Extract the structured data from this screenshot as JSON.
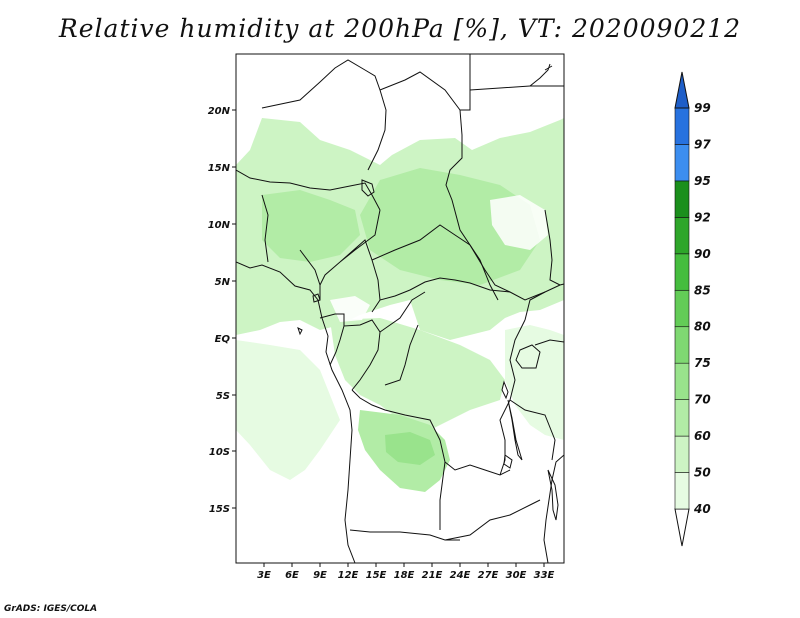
{
  "title": "Relative humidity at 200hPa [%], VT: 2020090212",
  "map": {
    "lon_labels": [
      "3E",
      "6E",
      "9E",
      "12E",
      "15E",
      "18E",
      "21E",
      "24E",
      "27E",
      "30E",
      "33E"
    ],
    "lat_labels": [
      "20N",
      "15N",
      "10N",
      "5N",
      "EQ",
      "5S",
      "10S",
      "15S"
    ]
  },
  "colorbar": {
    "levels": [
      "40",
      "50",
      "60",
      "70",
      "75",
      "80",
      "85",
      "90",
      "92",
      "95",
      "97",
      "99"
    ],
    "colors": [
      "#e6fbe2",
      "#cdf4c4",
      "#b2eca6",
      "#99e38c",
      "#7fd872",
      "#63cc57",
      "#45bd3e",
      "#2ea62a",
      "#1b8f1c",
      "#3c8ef0",
      "#2772df",
      "#1e5ec8"
    ],
    "under_color": "#ffffff"
  },
  "credit": "GrADS: IGES/COLA"
}
